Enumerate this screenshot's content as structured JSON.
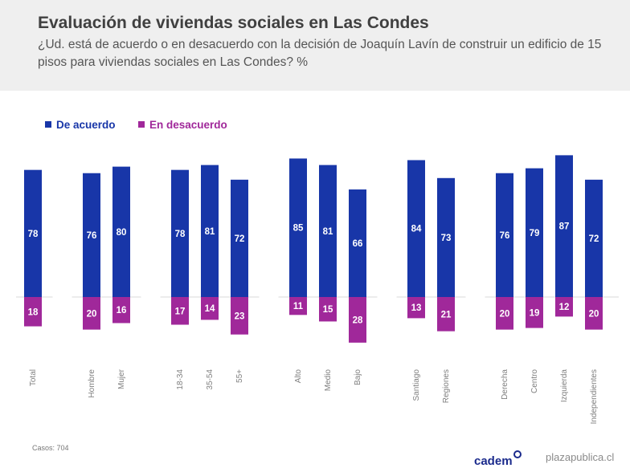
{
  "header": {
    "title": "Evaluación de viviendas sociales en Las Condes",
    "subtitle": "¿Ud. está de acuerdo o en desacuerdo con la decisión de Joaquín Lavín de construir un edificio de 15 pisos para viviendas sociales en Las Condes? %"
  },
  "colors": {
    "agree": "#1836a8",
    "disagree": "#a0289a"
  },
  "chart_data": {
    "type": "bar",
    "title": "Evaluación de viviendas sociales en Las Condes",
    "categories": [
      "Total",
      "Hombre",
      "Mujer",
      "18-34",
      "35-54",
      "55+",
      "Alto",
      "Medio",
      "Bajo",
      "Santiago",
      "Regiones",
      "Derecha",
      "Centro",
      "Izquierda",
      "Independientes"
    ],
    "series": [
      {
        "name": "De acuerdo",
        "values": [
          78,
          76,
          80,
          78,
          81,
          72,
          85,
          81,
          66,
          84,
          73,
          76,
          79,
          87,
          72
        ]
      },
      {
        "name": "En desacuerdo",
        "values": [
          18,
          20,
          16,
          17,
          14,
          23,
          11,
          15,
          28,
          13,
          21,
          20,
          19,
          12,
          20
        ]
      }
    ],
    "groups": [
      [
        "Total"
      ],
      [
        "Hombre",
        "Mujer"
      ],
      [
        "18-34",
        "35-54",
        "55+"
      ],
      [
        "Alto",
        "Medio",
        "Bajo"
      ],
      [
        "Santiago",
        "Regiones"
      ],
      [
        "Derecha",
        "Centro",
        "Izquierda",
        "Independientes"
      ]
    ],
    "legend_position": "top-left",
    "xlabel": "",
    "ylabel": ""
  },
  "footer": {
    "cases": "Casos: 704",
    "brand": "cadem",
    "site": "plazapublica.cl"
  }
}
